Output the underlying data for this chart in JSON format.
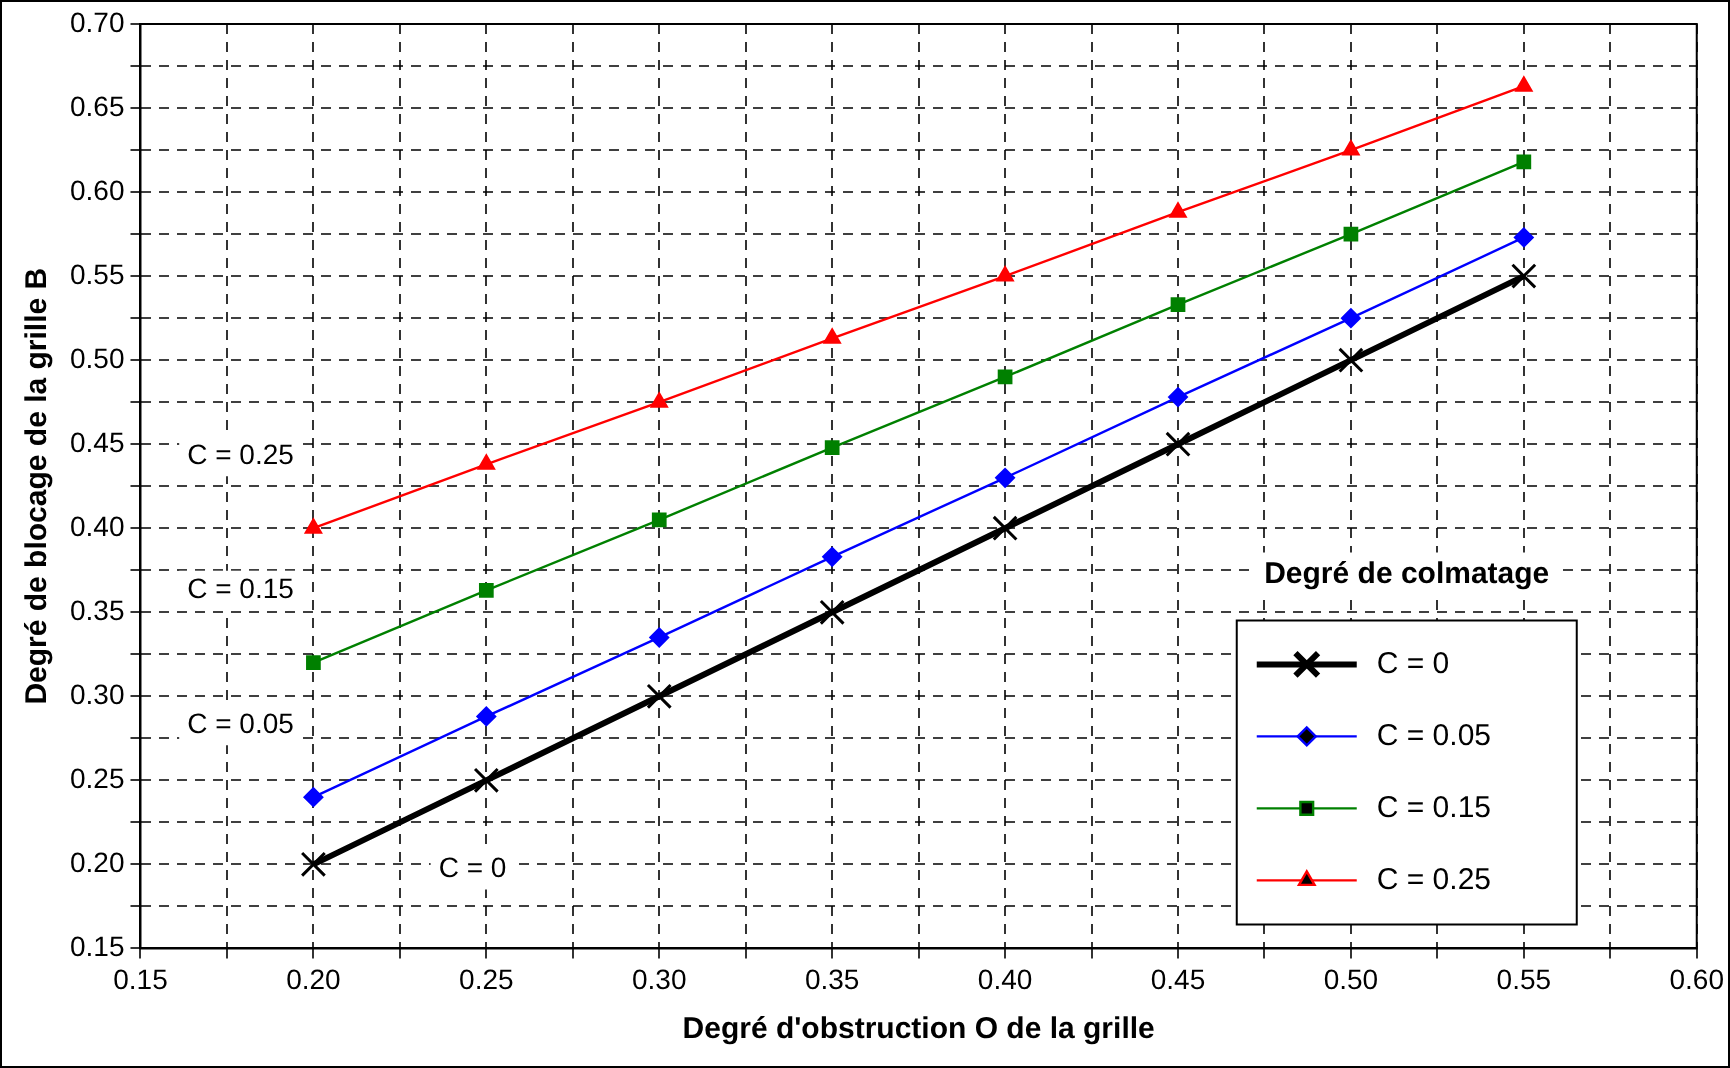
{
  "chart_data": {
    "type": "line",
    "xlabel": "Degré d'obstruction O de la grille",
    "ylabel": "Degré de blocage de la grille B",
    "legend_title": "Degré de colmatage",
    "x": [
      0.2,
      0.25,
      0.3,
      0.35,
      0.4,
      0.45,
      0.5,
      0.55
    ],
    "series": [
      {
        "name": "C = 0",
        "color": "#000000",
        "marker": "cross",
        "values": [
          0.2,
          0.25,
          0.3,
          0.35,
          0.4,
          0.45,
          0.5,
          0.55
        ]
      },
      {
        "name": "C = 0.05",
        "color": "#0000ff",
        "marker": "diamond",
        "values": [
          0.24,
          0.288,
          0.335,
          0.383,
          0.43,
          0.478,
          0.525,
          0.573
        ]
      },
      {
        "name": "C = 0.15",
        "color": "#008000",
        "marker": "square",
        "values": [
          0.32,
          0.363,
          0.405,
          0.448,
          0.49,
          0.533,
          0.575,
          0.618
        ]
      },
      {
        "name": "C = 0.25",
        "color": "#ff0000",
        "marker": "triangle",
        "values": [
          0.4,
          0.438,
          0.475,
          0.513,
          0.55,
          0.588,
          0.625,
          0.663
        ]
      }
    ],
    "xlim": [
      0.15,
      0.6
    ],
    "xticks": [
      {
        "value": 0.15,
        "label": "0.15"
      },
      {
        "value": 0.175,
        "label": null
      },
      {
        "value": 0.2,
        "label": "0.20"
      },
      {
        "value": 0.225,
        "label": null
      },
      {
        "value": 0.25,
        "label": "0.25"
      },
      {
        "value": 0.275,
        "label": null
      },
      {
        "value": 0.3,
        "label": "0.30"
      },
      {
        "value": 0.325,
        "label": null
      },
      {
        "value": 0.35,
        "label": "0.35"
      },
      {
        "value": 0.375,
        "label": null
      },
      {
        "value": 0.4,
        "label": "0.40"
      },
      {
        "value": 0.425,
        "label": null
      },
      {
        "value": 0.45,
        "label": "0.45"
      },
      {
        "value": 0.475,
        "label": null
      },
      {
        "value": 0.5,
        "label": "0.50"
      },
      {
        "value": 0.525,
        "label": null
      },
      {
        "value": 0.55,
        "label": "0.55"
      },
      {
        "value": 0.575,
        "label": null
      },
      {
        "value": 0.6,
        "label": "0.60"
      }
    ],
    "ylim": [
      0.15,
      0.7
    ],
    "yticks": [
      {
        "value": 0.15,
        "label": "0.15"
      },
      {
        "value": 0.175,
        "label": null
      },
      {
        "value": 0.2,
        "label": "0.20"
      },
      {
        "value": 0.225,
        "label": null
      },
      {
        "value": 0.25,
        "label": "0.25"
      },
      {
        "value": 0.275,
        "label": null
      },
      {
        "value": 0.3,
        "label": "0.30"
      },
      {
        "value": 0.325,
        "label": null
      },
      {
        "value": 0.35,
        "label": "0.35"
      },
      {
        "value": 0.375,
        "label": null
      },
      {
        "value": 0.4,
        "label": "0.40"
      },
      {
        "value": 0.425,
        "label": null
      },
      {
        "value": 0.45,
        "label": "0.45"
      },
      {
        "value": 0.475,
        "label": null
      },
      {
        "value": 0.5,
        "label": "0.50"
      },
      {
        "value": 0.525,
        "label": null
      },
      {
        "value": 0.55,
        "label": "0.55"
      },
      {
        "value": 0.575,
        "label": null
      },
      {
        "value": 0.6,
        "label": "0.60"
      },
      {
        "value": 0.625,
        "label": null
      },
      {
        "value": 0.65,
        "label": "0.65"
      },
      {
        "value": 0.675,
        "label": null
      },
      {
        "value": 0.7,
        "label": "0.70"
      }
    ],
    "grid": true,
    "line_style": "solid",
    "legend": "right",
    "annotations": [
      "C = 0.25",
      "C = 0.15",
      "C = 0.05",
      {
        "text": "C = 0",
        "x": 0.246,
        "y": 0.197
      }
    ]
  }
}
